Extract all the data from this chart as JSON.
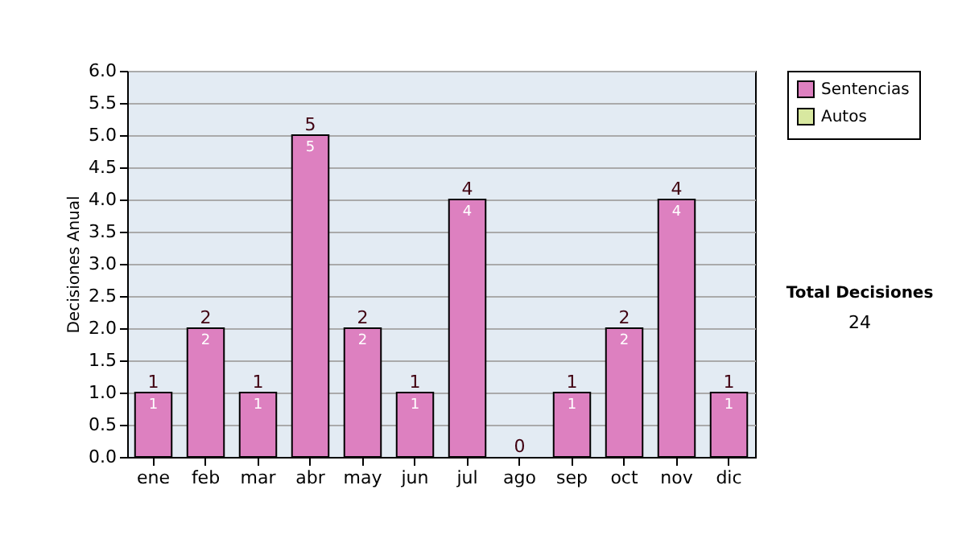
{
  "chart_data": {
    "type": "bar",
    "stacked": true,
    "ylabel": "Decisiones Anual",
    "categories": [
      "ene",
      "feb",
      "mar",
      "abr",
      "may",
      "jun",
      "jul",
      "ago",
      "sep",
      "oct",
      "nov",
      "dic"
    ],
    "series": [
      {
        "name": "Sentencias",
        "color": "#dd80c0",
        "values": [
          1,
          2,
          1,
          5,
          2,
          1,
          4,
          0,
          1,
          2,
          4,
          1
        ],
        "value_labels": [
          "1",
          "2",
          "1",
          "5",
          "2",
          "1",
          "4",
          null,
          "1",
          "2",
          "4",
          "1"
        ]
      },
      {
        "name": "Autos",
        "color": "#d8e8a0",
        "values": [
          0,
          0,
          0,
          0,
          0,
          0,
          0,
          0,
          0,
          0,
          0,
          0
        ]
      }
    ],
    "totals": [
      "1",
      "2",
      "1",
      "5",
      "2",
      "1",
      "4",
      "0",
      "1",
      "2",
      "4",
      "1"
    ],
    "ylim": [
      0,
      6
    ],
    "yticks": [
      {
        "value": 0,
        "label": "0.0"
      },
      {
        "value": 0.5,
        "label": "0.5"
      },
      {
        "value": 1,
        "label": "1.0"
      },
      {
        "value": 1.5,
        "label": "1.5"
      },
      {
        "value": 2,
        "label": "2.0"
      },
      {
        "value": 2.5,
        "label": "2.5"
      },
      {
        "value": 3,
        "label": "3.0"
      },
      {
        "value": 3.5,
        "label": "3.5"
      },
      {
        "value": 4,
        "label": "4.0"
      },
      {
        "value": 4.5,
        "label": "4.5"
      },
      {
        "value": 5,
        "label": "5.0"
      },
      {
        "value": 5.5,
        "label": "5.5"
      },
      {
        "value": 6,
        "label": "6.0"
      }
    ],
    "grid": "y",
    "legend": "right",
    "annotations": [
      "Total Decisiones",
      "24"
    ]
  }
}
